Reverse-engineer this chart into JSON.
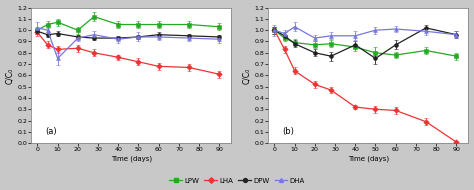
{
  "panel_a": {
    "LPW": {
      "x": [
        0,
        5,
        10,
        20,
        28,
        40,
        50,
        60,
        75,
        90
      ],
      "y": [
        1.0,
        1.05,
        1.07,
        1.0,
        1.12,
        1.05,
        1.05,
        1.05,
        1.05,
        1.03
      ],
      "yerr": [
        0.03,
        0.03,
        0.03,
        0.03,
        0.04,
        0.03,
        0.03,
        0.03,
        0.03,
        0.03
      ],
      "color": "#22aa22",
      "marker": "s"
    },
    "LHA": {
      "x": [
        0,
        5,
        10,
        20,
        28,
        40,
        50,
        60,
        75,
        90
      ],
      "y": [
        0.98,
        0.87,
        0.83,
        0.84,
        0.8,
        0.76,
        0.72,
        0.68,
        0.67,
        0.61
      ],
      "yerr": [
        0.03,
        0.03,
        0.03,
        0.03,
        0.03,
        0.02,
        0.03,
        0.03,
        0.03,
        0.03
      ],
      "color": "#ee3333",
      "marker": "D"
    },
    "DPW": {
      "x": [
        0,
        5,
        10,
        20,
        28,
        40,
        50,
        60,
        75,
        90
      ],
      "y": [
        0.99,
        0.96,
        0.97,
        0.94,
        0.93,
        0.93,
        0.94,
        0.96,
        0.95,
        0.94
      ],
      "yerr": [
        0.02,
        0.02,
        0.02,
        0.02,
        0.02,
        0.02,
        0.02,
        0.02,
        0.02,
        0.02
      ],
      "color": "#222222",
      "marker": "o"
    },
    "DHA": {
      "x": [
        0,
        5,
        10,
        20,
        28,
        40,
        50,
        60,
        75,
        90
      ],
      "y": [
        1.02,
        1.0,
        0.75,
        0.93,
        0.96,
        0.92,
        0.94,
        0.94,
        0.93,
        0.92
      ],
      "yerr": [
        0.05,
        0.04,
        0.06,
        0.03,
        0.03,
        0.03,
        0.04,
        0.03,
        0.03,
        0.03
      ],
      "color": "#7777dd",
      "marker": "^"
    },
    "ylabel": "C/C₀",
    "xlabel": "Time (days)",
    "label": "(a)",
    "ylim": [
      0.0,
      1.2
    ],
    "yticks": [
      0.0,
      0.1,
      0.2,
      0.3,
      0.4,
      0.5,
      0.6,
      0.7,
      0.8,
      0.9,
      1.0,
      1.1,
      1.2
    ]
  },
  "panel_b": {
    "LPW": {
      "x": [
        0,
        5,
        10,
        20,
        28,
        40,
        50,
        60,
        75,
        90
      ],
      "y": [
        1.0,
        0.93,
        0.89,
        0.87,
        0.88,
        0.85,
        0.8,
        0.78,
        0.82,
        0.77
      ],
      "yerr": [
        0.03,
        0.03,
        0.03,
        0.03,
        0.03,
        0.03,
        0.05,
        0.03,
        0.03,
        0.03
      ],
      "color": "#22aa22",
      "marker": "s"
    },
    "LHA": {
      "x": [
        0,
        5,
        10,
        20,
        28,
        40,
        50,
        60,
        75,
        90
      ],
      "y": [
        1.0,
        0.83,
        0.64,
        0.52,
        0.47,
        0.32,
        0.3,
        0.29,
        0.19,
        0.01
      ],
      "yerr": [
        0.03,
        0.03,
        0.03,
        0.03,
        0.03,
        0.02,
        0.03,
        0.03,
        0.03,
        0.01
      ],
      "color": "#ee3333",
      "marker": "D"
    },
    "DPW": {
      "x": [
        0,
        5,
        10,
        20,
        28,
        40,
        50,
        60,
        75,
        90
      ],
      "y": [
        1.0,
        0.95,
        0.88,
        0.8,
        0.77,
        0.87,
        0.75,
        0.87,
        1.02,
        0.96
      ],
      "yerr": [
        0.03,
        0.03,
        0.03,
        0.03,
        0.04,
        0.03,
        0.05,
        0.04,
        0.03,
        0.03
      ],
      "color": "#222222",
      "marker": "o"
    },
    "DHA": {
      "x": [
        0,
        5,
        10,
        20,
        28,
        40,
        50,
        60,
        75,
        90
      ],
      "y": [
        1.0,
        0.97,
        1.03,
        0.93,
        0.95,
        0.95,
        1.0,
        1.01,
        0.99,
        0.96
      ],
      "yerr": [
        0.05,
        0.03,
        0.04,
        0.03,
        0.03,
        0.04,
        0.03,
        0.03,
        0.03,
        0.03
      ],
      "color": "#7777dd",
      "marker": "^"
    },
    "ylabel": "C/C₀",
    "xlabel": "Time (days)",
    "label": "(b)",
    "ylim": [
      0.0,
      1.2
    ],
    "yticks": [
      0.0,
      0.1,
      0.2,
      0.3,
      0.4,
      0.5,
      0.6,
      0.7,
      0.8,
      0.9,
      1.0,
      1.1,
      1.2
    ]
  },
  "legend": {
    "LPW": {
      "color": "#22aa22",
      "marker": "s",
      "label": "LPW"
    },
    "LHA": {
      "color": "#ee3333",
      "marker": "D",
      "label": "LHA"
    },
    "DPW": {
      "color": "#222222",
      "marker": "o",
      "label": "DPW"
    },
    "DHA": {
      "color": "#7777dd",
      "marker": "^",
      "label": "DHA"
    }
  },
  "bg_color": "#c8c8c8",
  "plot_bg": "#ffffff"
}
